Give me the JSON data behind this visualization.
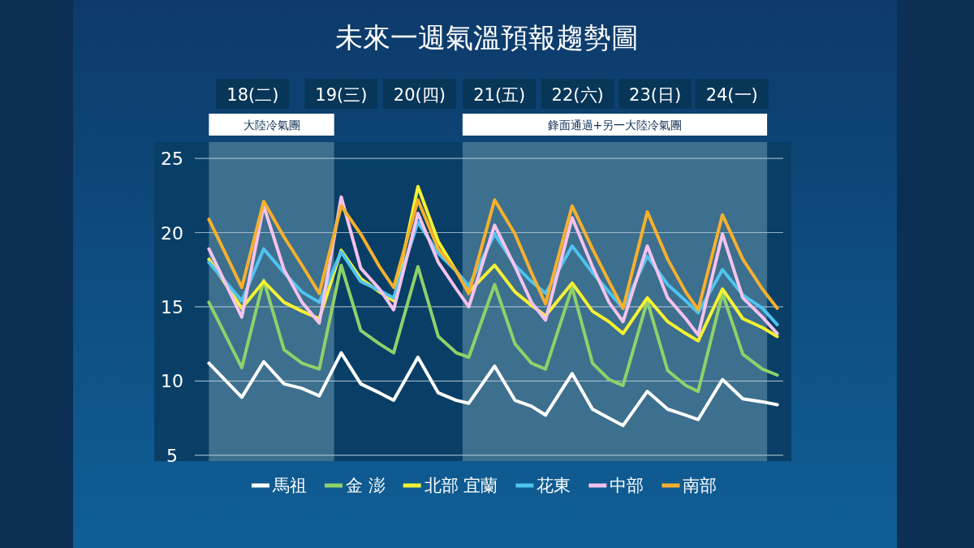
{
  "chart_data": {
    "type": "line",
    "title": "未來一週氣溫預報趨勢圖",
    "x": [
      17.76,
      18.18,
      18.46,
      18.72,
      18.95,
      19.17,
      19.45,
      19.7,
      19.94,
      20.12,
      20.43,
      20.69,
      20.92,
      21.08,
      21.41,
      21.67,
      21.88,
      22.06,
      22.4,
      22.66,
      22.87,
      23.05,
      23.36,
      23.62,
      23.85,
      24.01,
      24.32,
      24.58,
      24.83,
      25.02
    ],
    "xlim": [
      17.58,
      25.2
    ],
    "xticks": [
      {
        "value": 18.32,
        "label": "18(二)"
      },
      {
        "value": 19.45,
        "label": "19(三)"
      },
      {
        "value": 20.45,
        "label": "20(四)"
      },
      {
        "value": 21.47,
        "label": "21(五)"
      },
      {
        "value": 22.47,
        "label": "22(六)"
      },
      {
        "value": 23.46,
        "label": "23(日)"
      },
      {
        "value": 24.44,
        "label": "24(一)"
      }
    ],
    "ylim": [
      4.6,
      26.1
    ],
    "yticks": [
      5,
      10,
      15,
      20,
      25
    ],
    "grid": "y",
    "legend": "bottom",
    "line_style": "solid",
    "bands": [
      {
        "axis": "x",
        "from": 17.76,
        "to": 19.36,
        "label": "大陸冷氣團",
        "color": "#3d6f8e"
      },
      {
        "axis": "x",
        "from": 21.0,
        "to": 24.89,
        "label": "鋒面通過+另一大陸冷氣團",
        "color": "#3d6f8e"
      }
    ],
    "series": [
      {
        "name": "馬祖",
        "color": "#ffffff",
        "values": [
          11.2,
          8.9,
          11.3,
          9.8,
          9.5,
          9.0,
          11.9,
          9.8,
          9.2,
          8.7,
          11.6,
          9.2,
          8.7,
          8.5,
          11.0,
          8.7,
          8.3,
          7.7,
          10.5,
          8.1,
          7.5,
          7.0,
          9.3,
          8.1,
          7.7,
          7.4,
          10.1,
          8.8,
          8.6,
          8.4
        ]
      },
      {
        "name": "金 澎",
        "color": "#8fd16a",
        "values": [
          15.3,
          10.9,
          16.8,
          12.1,
          11.2,
          10.8,
          17.8,
          13.4,
          12.5,
          11.9,
          17.7,
          13.0,
          11.9,
          11.6,
          16.5,
          12.5,
          11.2,
          10.8,
          16.3,
          11.2,
          10.1,
          9.7,
          15.4,
          10.7,
          9.7,
          9.3,
          15.9,
          11.8,
          10.8,
          10.4
        ]
      },
      {
        "name": "北部 宜蘭",
        "color": "#f5f232",
        "values": [
          18.2,
          14.9,
          16.7,
          15.3,
          14.7,
          14.2,
          18.8,
          16.9,
          16.0,
          15.4,
          23.1,
          19.4,
          17.4,
          16.0,
          17.8,
          16.0,
          15.1,
          14.4,
          16.6,
          14.7,
          14.0,
          13.2,
          15.6,
          14.0,
          13.2,
          12.7,
          16.2,
          14.2,
          13.6,
          13.0
        ]
      },
      {
        "name": "花東",
        "color": "#4fc3f0",
        "values": [
          18.0,
          15.4,
          18.9,
          17.3,
          16.0,
          15.3,
          18.7,
          16.7,
          16.1,
          15.6,
          20.7,
          18.6,
          17.4,
          16.4,
          19.9,
          17.8,
          16.7,
          15.9,
          19.1,
          17.3,
          16.0,
          14.9,
          18.4,
          16.5,
          15.4,
          14.6,
          17.5,
          15.8,
          14.9,
          13.8
        ]
      },
      {
        "name": "中部",
        "color": "#f5c2ee",
        "values": [
          18.9,
          14.3,
          21.8,
          17.5,
          15.3,
          13.9,
          22.4,
          17.6,
          16.2,
          14.8,
          21.3,
          18.0,
          16.2,
          15.0,
          20.5,
          17.7,
          15.3,
          14.1,
          21.0,
          17.7,
          15.3,
          14.0,
          19.1,
          15.6,
          14.2,
          13.1,
          19.9,
          15.6,
          14.3,
          13.2
        ]
      },
      {
        "name": "南部",
        "color": "#f5b02e",
        "values": [
          20.9,
          16.3,
          22.1,
          19.7,
          17.8,
          15.9,
          21.8,
          19.9,
          17.7,
          16.3,
          22.2,
          18.9,
          17.4,
          15.9,
          22.2,
          19.9,
          17.3,
          15.2,
          21.8,
          18.9,
          16.7,
          14.9,
          21.4,
          18.2,
          16.0,
          14.8,
          21.2,
          18.2,
          16.2,
          14.9
        ]
      }
    ]
  }
}
